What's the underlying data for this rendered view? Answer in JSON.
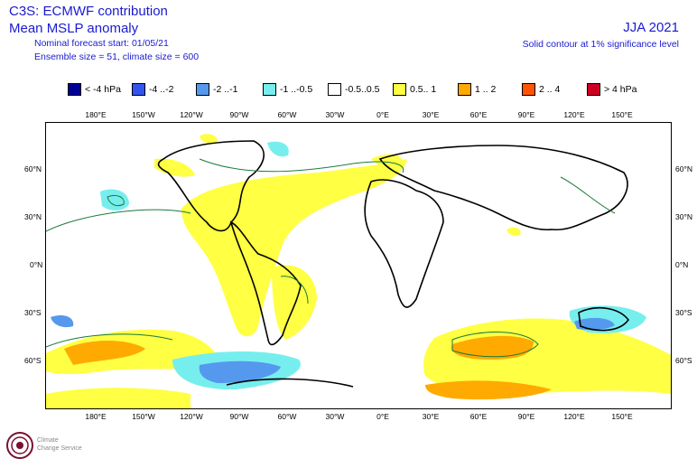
{
  "header": {
    "title1": "C3S: ECMWF contribution",
    "title2": "Mean MSLP anomaly",
    "forecast_start": "Nominal forecast start: 01/05/21",
    "ensemble": "Ensemble size = 51, climate size = 600",
    "season": "JJA 2021",
    "significance": "Solid contour at 1% significance level"
  },
  "legend": [
    {
      "label": "< -4 hPa",
      "color": "#000099"
    },
    {
      "label": "-4 ..-2",
      "color": "#3355ee"
    },
    {
      "label": "-2 ..-1",
      "color": "#5599ee"
    },
    {
      "label": "-1 ..-0.5",
      "color": "#77eeee"
    },
    {
      "label": "-0.5..0.5",
      "color": "#ffffff"
    },
    {
      "label": "0.5.. 1",
      "color": "#ffff44"
    },
    {
      "label": "1 .. 2",
      "color": "#ffaa00"
    },
    {
      "label": "2 .. 4",
      "color": "#ff5500"
    },
    {
      "label": "> 4 hPa",
      "color": "#cc0022"
    }
  ],
  "lon_labels": [
    "180°E",
    "150°W",
    "120°W",
    "90°W",
    "60°W",
    "30°W",
    "0°E",
    "30°E",
    "60°E",
    "90°E",
    "120°E",
    "150°E"
  ],
  "lat_labels": [
    "60°N",
    "30°N",
    "0°N",
    "30°S",
    "60°S"
  ],
  "logo": {
    "line1": "Climate",
    "line2": "Change Service"
  },
  "colors": {
    "text": "#1a1ad0",
    "contour": "#1a7a3a"
  }
}
